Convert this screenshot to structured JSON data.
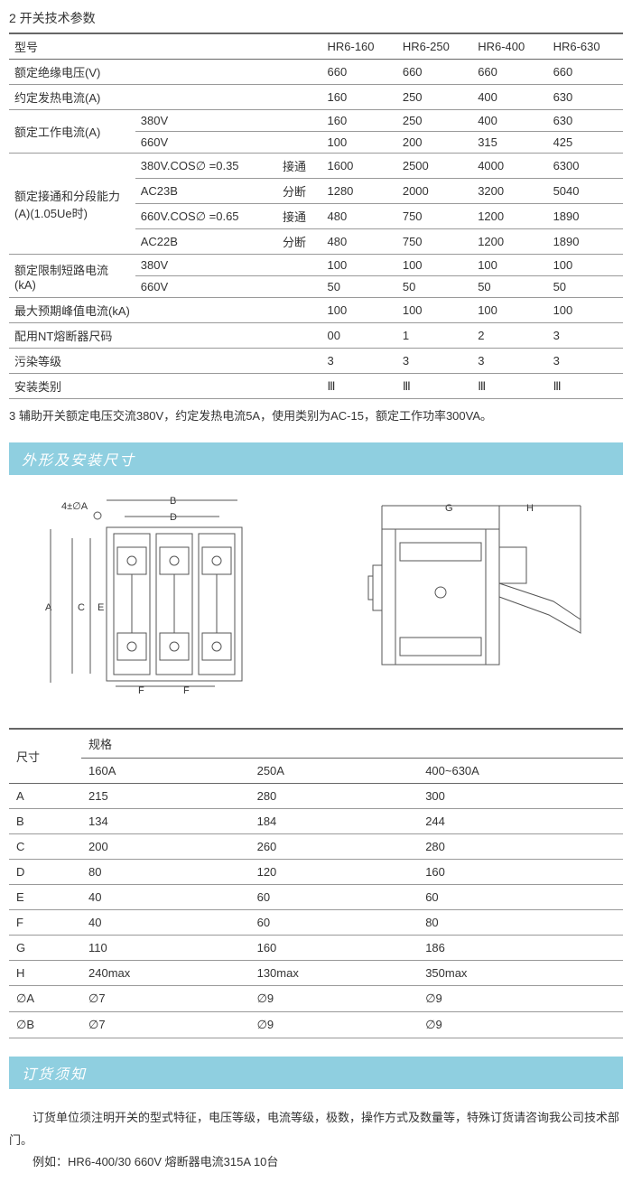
{
  "section1": {
    "title": "2 开关技术参数"
  },
  "table1": {
    "head": [
      "型号",
      "HR6-160",
      "HR6-250",
      "HR6-400",
      "HR6-630"
    ],
    "rows": [
      {
        "labels": [
          "额定绝缘电压(V)"
        ],
        "vals": [
          "660",
          "660",
          "660",
          "660"
        ]
      },
      {
        "labels": [
          "约定发热电流(A)"
        ],
        "vals": [
          "160",
          "250",
          "400",
          "630"
        ]
      },
      {
        "labels": [
          "额定工作电流(A)",
          "380V"
        ],
        "vals": [
          "160",
          "250",
          "400",
          "630"
        ],
        "span": 2
      },
      {
        "labels": [
          "",
          "660V"
        ],
        "vals": [
          "100",
          "200",
          "315",
          "425"
        ]
      },
      {
        "labels": [
          "额定接通和分段能力(A)(1.05Ue时)",
          "380V.COS∅ =0.35",
          "接通"
        ],
        "vals": [
          "1600",
          "2500",
          "4000",
          "6300"
        ],
        "span": 4
      },
      {
        "labels": [
          "",
          "AC23B",
          "分断"
        ],
        "vals": [
          "1280",
          "2000",
          "3200",
          "5040"
        ]
      },
      {
        "labels": [
          "",
          "660V.COS∅ =0.65",
          "接通"
        ],
        "vals": [
          "480",
          "750",
          "1200",
          "1890"
        ]
      },
      {
        "labels": [
          "",
          "AC22B",
          "分断"
        ],
        "vals": [
          "480",
          "750",
          "1200",
          "1890"
        ]
      },
      {
        "labels": [
          "额定限制短路电流(kA)",
          "380V"
        ],
        "vals": [
          "100",
          "100",
          "100",
          "100"
        ],
        "span": 2
      },
      {
        "labels": [
          "",
          "660V"
        ],
        "vals": [
          "50",
          "50",
          "50",
          "50"
        ]
      },
      {
        "labels": [
          "最大预期峰值电流(kA)"
        ],
        "vals": [
          "100",
          "100",
          "100",
          "100"
        ]
      },
      {
        "labels": [
          "配用NT熔断器尺码"
        ],
        "vals": [
          "00",
          "1",
          "2",
          "3"
        ]
      },
      {
        "labels": [
          "污染等级"
        ],
        "vals": [
          "3",
          "3",
          "3",
          "3"
        ]
      },
      {
        "labels": [
          "安装类别"
        ],
        "vals": [
          "Ⅲ",
          "Ⅲ",
          "Ⅲ",
          "Ⅲ"
        ]
      }
    ]
  },
  "note3": "3 辅助开关额定电压交流380V，约定发热电流5A，使用类别为AC-15，额定工作功率300VA。",
  "banner1": "外形及安装尺寸",
  "diagram": {
    "left_labels": {
      "top": "4±∅A",
      "B": "B",
      "D": "D",
      "A": "A",
      "C": "C",
      "E": "E",
      "F": "F"
    },
    "right_labels": {
      "G": "G",
      "H": "H"
    }
  },
  "table2": {
    "head1": [
      "尺寸",
      "规格"
    ],
    "head2": [
      "",
      "160A",
      "250A",
      "400~630A"
    ],
    "rows": [
      [
        "A",
        "215",
        "280",
        "300"
      ],
      [
        "B",
        "134",
        "184",
        "244"
      ],
      [
        "C",
        "200",
        "260",
        "280"
      ],
      [
        "D",
        "80",
        "120",
        "160"
      ],
      [
        "E",
        "40",
        "60",
        "60"
      ],
      [
        "F",
        "40",
        "60",
        "80"
      ],
      [
        "G",
        "110",
        "160",
        "186"
      ],
      [
        "H",
        "240max",
        "130max",
        "350max"
      ],
      [
        "∅A",
        "∅7",
        "∅9",
        "∅9"
      ],
      [
        "∅B",
        "∅7",
        "∅9",
        "∅9"
      ]
    ]
  },
  "banner2": "订货须知",
  "order": {
    "p1": "订货单位须注明开关的型式特征，电压等级，电流等级，极数，操作方式及数量等，特殊订货请咨询我公司技术部门。",
    "p2": "例如：HR6-400/30 660V  熔断器电流315A 10台"
  }
}
